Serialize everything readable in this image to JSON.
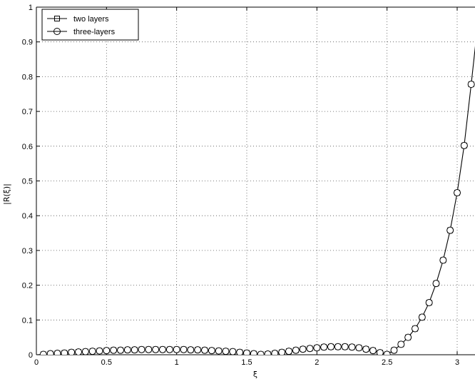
{
  "chart_data": {
    "type": "line",
    "title": "",
    "xlabel": "ξ",
    "ylabel": "|R(ξ)|",
    "xlim": [
      0,
      3.1
    ],
    "ylim": [
      0,
      1
    ],
    "xticks": [
      0,
      0.5,
      1,
      1.5,
      2,
      2.5,
      3
    ],
    "xtick_labels": [
      "0",
      "0.5",
      "1",
      "1.5",
      "2",
      "2.5",
      "3"
    ],
    "yticks": [
      0,
      0.1,
      0.2,
      0.3,
      0.4,
      0.5,
      0.6,
      0.7,
      0.8,
      0.9,
      1
    ],
    "ytick_labels": [
      "0",
      "0.1",
      "0.2",
      "0.3",
      "0.4",
      "0.5",
      "0.6",
      "0.7",
      "0.8",
      "0.9",
      "1"
    ],
    "grid": true,
    "legend_position": "top-left",
    "x": [
      0.05,
      0.1,
      0.15,
      0.2,
      0.25,
      0.3,
      0.35,
      0.4,
      0.45,
      0.5,
      0.55,
      0.6,
      0.65,
      0.7,
      0.75,
      0.8,
      0.85,
      0.9,
      0.95,
      1.0,
      1.05,
      1.1,
      1.15,
      1.2,
      1.25,
      1.3,
      1.35,
      1.4,
      1.45,
      1.5,
      1.55,
      1.6,
      1.65,
      1.7,
      1.75,
      1.8,
      1.85,
      1.9,
      1.95,
      2.0,
      2.05,
      2.1,
      2.15,
      2.2,
      2.25,
      2.3,
      2.35,
      2.4,
      2.45,
      2.5,
      2.55,
      2.6,
      2.65,
      2.7,
      2.75,
      2.8,
      2.85,
      2.9,
      2.95,
      3.0,
      3.05,
      3.1
    ],
    "series": [
      {
        "name": "two layers",
        "marker": "square",
        "values": [
          0.001,
          0.003,
          0.004,
          0.005,
          0.007,
          0.008,
          0.009,
          0.01,
          0.011,
          0.012,
          0.013,
          0.013,
          0.014,
          0.014,
          0.015,
          0.015,
          0.015,
          0.015,
          0.015,
          0.015,
          0.015,
          0.014,
          0.014,
          0.013,
          0.012,
          0.011,
          0.01,
          0.009,
          0.007,
          0.005,
          0.003,
          0.001,
          0.002,
          0.004,
          0.007,
          0.01,
          0.013,
          0.016,
          0.018,
          0.02,
          0.022,
          0.023,
          0.023,
          0.023,
          0.022,
          0.02,
          0.016,
          0.012,
          0.006,
          0.001,
          0.013,
          0.03,
          0.05,
          0.075,
          0.108,
          0.15,
          0.205,
          0.272,
          0.358,
          0.466,
          0.602,
          0.778
        ]
      },
      {
        "name": "three-layers",
        "marker": "circle",
        "values": [
          0.001,
          0.003,
          0.004,
          0.005,
          0.007,
          0.008,
          0.009,
          0.01,
          0.011,
          0.012,
          0.013,
          0.013,
          0.014,
          0.014,
          0.015,
          0.015,
          0.015,
          0.015,
          0.015,
          0.015,
          0.015,
          0.014,
          0.014,
          0.013,
          0.012,
          0.011,
          0.01,
          0.009,
          0.007,
          0.005,
          0.003,
          0.001,
          0.002,
          0.004,
          0.007,
          0.01,
          0.013,
          0.016,
          0.018,
          0.02,
          0.022,
          0.023,
          0.023,
          0.023,
          0.022,
          0.02,
          0.016,
          0.012,
          0.006,
          0.001,
          0.013,
          0.03,
          0.05,
          0.075,
          0.108,
          0.15,
          0.205,
          0.272,
          0.358,
          0.466,
          0.602,
          0.778
        ]
      }
    ],
    "curve_extends_to": {
      "x": 3.16,
      "y": 1.0
    }
  }
}
